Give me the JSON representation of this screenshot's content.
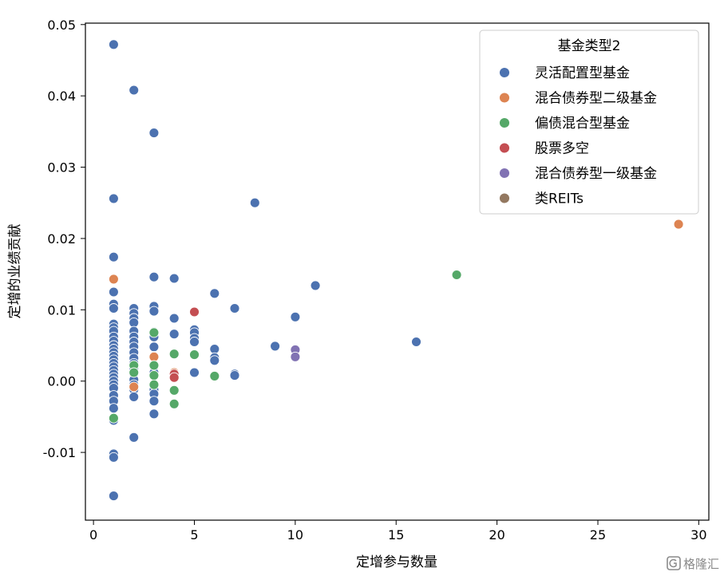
{
  "chart_data": {
    "type": "scatter",
    "xlabel": "定增参与数量",
    "ylabel": "定增的业绩贡献",
    "xlim": [
      -0.4,
      30.5
    ],
    "ylim": [
      -0.0195,
      0.0502
    ],
    "xticks": [
      0,
      5,
      10,
      15,
      20,
      25,
      30
    ],
    "yticks": [
      -0.01,
      0.0,
      0.01,
      0.02,
      0.03,
      0.04,
      0.05
    ],
    "ytick_labels": [
      "-0.01",
      "0.00",
      "0.01",
      "0.02",
      "0.03",
      "0.04",
      "0.05"
    ],
    "grid": false,
    "legend": {
      "title": "基金类型2",
      "placement": "top-right",
      "entries": [
        "灵活配置型基金",
        "混合债券型二级基金",
        "偏债混合型基金",
        "股票多空",
        "混合债券型一级基金",
        "类REITs"
      ]
    },
    "series": [
      {
        "name": "灵活配置型基金",
        "color": "#4c72b0",
        "points": [
          [
            1,
            0.0472
          ],
          [
            1,
            0.0256
          ],
          [
            1,
            0.0174
          ],
          [
            1,
            0.0125
          ],
          [
            1,
            0.0108
          ],
          [
            1,
            0.0102
          ],
          [
            1,
            0.008
          ],
          [
            1,
            0.0075
          ],
          [
            1,
            0.007
          ],
          [
            1,
            0.0062
          ],
          [
            1,
            0.0056
          ],
          [
            1,
            0.005
          ],
          [
            1,
            0.0045
          ],
          [
            1,
            0.004
          ],
          [
            1,
            0.0035
          ],
          [
            1,
            0.003
          ],
          [
            1,
            0.0025
          ],
          [
            1,
            0.002
          ],
          [
            1,
            0.0015
          ],
          [
            1,
            0.001
          ],
          [
            1,
            0.0005
          ],
          [
            1,
            0.0
          ],
          [
            1,
            -0.0005
          ],
          [
            1,
            -0.001
          ],
          [
            1,
            -0.002
          ],
          [
            1,
            -0.0028
          ],
          [
            1,
            -0.0038
          ],
          [
            1,
            -0.0055
          ],
          [
            1,
            -0.0102
          ],
          [
            1,
            -0.0107
          ],
          [
            1,
            -0.0161
          ],
          [
            2,
            0.0408
          ],
          [
            2,
            0.0102
          ],
          [
            2,
            0.0095
          ],
          [
            2,
            0.0088
          ],
          [
            2,
            0.0082
          ],
          [
            2,
            0.007
          ],
          [
            2,
            0.0062
          ],
          [
            2,
            0.0055
          ],
          [
            2,
            0.0048
          ],
          [
            2,
            0.004
          ],
          [
            2,
            0.0032
          ],
          [
            2,
            0.0025
          ],
          [
            2,
            0.0018
          ],
          [
            2,
            0.001
          ],
          [
            2,
            0.0002
          ],
          [
            2,
            -0.0005
          ],
          [
            2,
            -0.0012
          ],
          [
            2,
            -0.0022
          ],
          [
            2,
            -0.0079
          ],
          [
            3,
            0.0348
          ],
          [
            3,
            0.0146
          ],
          [
            3,
            0.0105
          ],
          [
            3,
            0.0098
          ],
          [
            3,
            0.0069
          ],
          [
            3,
            0.0062
          ],
          [
            3,
            0.0048
          ],
          [
            3,
            0.0035
          ],
          [
            3,
            0.002
          ],
          [
            3,
            0.0012
          ],
          [
            3,
            -0.0012
          ],
          [
            3,
            -0.0018
          ],
          [
            3,
            -0.0028
          ],
          [
            3,
            -0.0046
          ],
          [
            4,
            0.0144
          ],
          [
            4,
            0.0088
          ],
          [
            4,
            0.0066
          ],
          [
            5,
            0.0072
          ],
          [
            5,
            0.0068
          ],
          [
            5,
            0.006
          ],
          [
            5,
            0.0055
          ],
          [
            5,
            0.0012
          ],
          [
            6,
            0.0123
          ],
          [
            6,
            0.0045
          ],
          [
            6,
            0.0033
          ],
          [
            6,
            0.0029
          ],
          [
            7,
            0.0102
          ],
          [
            7,
            0.001
          ],
          [
            7,
            0.0008
          ],
          [
            8,
            0.025
          ],
          [
            9,
            0.0049
          ],
          [
            10,
            0.009
          ],
          [
            11,
            0.0134
          ],
          [
            16,
            0.0055
          ]
        ]
      },
      {
        "name": "混合债券型二级基金",
        "color": "#dd8452",
        "points": [
          [
            1,
            0.0143
          ],
          [
            2,
            -0.0008
          ],
          [
            3,
            0.0034
          ],
          [
            4,
            0.0012
          ],
          [
            29,
            0.022
          ]
        ]
      },
      {
        "name": "偏债混合型基金",
        "color": "#55a868",
        "points": [
          [
            1,
            -0.0052
          ],
          [
            2,
            0.0022
          ],
          [
            2,
            0.0012
          ],
          [
            3,
            0.0068
          ],
          [
            3,
            0.0022
          ],
          [
            3,
            0.0008
          ],
          [
            3,
            -0.0005
          ],
          [
            4,
            0.0038
          ],
          [
            4,
            -0.0013
          ],
          [
            4,
            -0.0032
          ],
          [
            5,
            0.0037
          ],
          [
            6,
            0.0007
          ],
          [
            18,
            0.0149
          ]
        ]
      },
      {
        "name": "股票多空",
        "color": "#c44e52",
        "points": [
          [
            4,
            0.001
          ],
          [
            4,
            0.0005
          ],
          [
            5,
            0.0097
          ]
        ]
      },
      {
        "name": "混合债券型一级基金",
        "color": "#8172b3",
        "points": [
          [
            10,
            0.0044
          ],
          [
            10,
            0.0034
          ]
        ]
      },
      {
        "name": "类REITs",
        "color": "#937860",
        "points": []
      }
    ]
  },
  "watermark": {
    "text": "格隆汇",
    "icon": "watermark-logo-icon"
  }
}
